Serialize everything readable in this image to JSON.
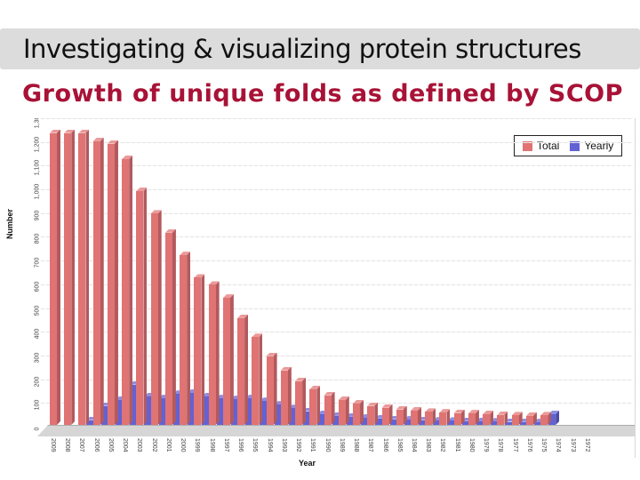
{
  "slide": {
    "title": "Investigating & visualizing protein structures",
    "subtitle": "Growth of unique folds as defined by SCOP"
  },
  "chart_data": {
    "type": "bar",
    "title": "",
    "xlabel": "Year",
    "ylabel": "Number",
    "grid": true,
    "legend_position": "top-right",
    "ylim": [
      0,
      1300
    ],
    "ytick_step": 100,
    "ytick_labels": [
      "0",
      "100",
      "200",
      "300",
      "400",
      "500",
      "600",
      "700",
      "800",
      "900",
      "1,000",
      "1,100",
      "1,200",
      "1,300"
    ],
    "categories": [
      "2009",
      "2008",
      "2007",
      "2006",
      "2005",
      "2004",
      "2003",
      "2002",
      "2001",
      "2000",
      "1999",
      "1998",
      "1997",
      "1996",
      "1995",
      "1994",
      "1993",
      "1992",
      "1991",
      "1990",
      "1989",
      "1988",
      "1987",
      "1986",
      "1985",
      "1984",
      "1983",
      "1982",
      "1981",
      "1980",
      "1979",
      "1978",
      "1977",
      "1976",
      "1975",
      "1974",
      "1973",
      "1972"
    ],
    "series": [
      {
        "name": "Total",
        "color": "#e07373",
        "values": [
          1230,
          1230,
          1230,
          1195,
          1185,
          1120,
          985,
          890,
          810,
          715,
          620,
          590,
          535,
          450,
          370,
          290,
          230,
          185,
          150,
          125,
          105,
          90,
          80,
          72,
          65,
          60,
          55,
          52,
          50,
          48,
          45,
          42,
          40,
          38,
          40,
          0,
          0,
          0
        ]
      },
      {
        "name": "Yearly",
        "color": "#6262d4",
        "values": [
          0,
          0,
          20,
          80,
          105,
          170,
          120,
          112,
          130,
          135,
          120,
          112,
          108,
          112,
          100,
          85,
          70,
          58,
          45,
          38,
          34,
          30,
          27,
          24,
          22,
          20,
          18,
          17,
          16,
          15,
          14,
          13,
          12,
          11,
          45,
          0,
          0,
          0
        ]
      }
    ]
  }
}
